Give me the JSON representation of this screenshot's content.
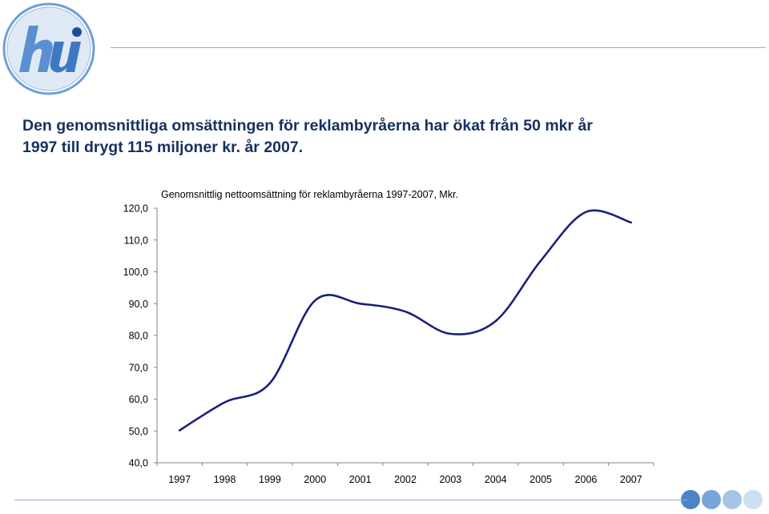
{
  "headline": {
    "line1": "Den genomsnittliga omsättningen för reklambyråerna har ökat från 50 mkr år",
    "line2": "1997 till drygt 115 miljoner kr. år 2007."
  },
  "logo": {
    "icon": "hui-logo-icon",
    "primary_color": "#5a8fd0",
    "accent_color": "#1f4e9a"
  },
  "colors": {
    "headline": "#17305f",
    "series_line": "#1a1f7a",
    "rules": "#8fb0d2"
  },
  "chart_data": {
    "type": "line",
    "title": "Genomsnittlig nettoomsättning för reklambyråerna 1997-2007, Mkr.",
    "xlabel": "",
    "ylabel": "",
    "categories": [
      "1997",
      "1998",
      "1999",
      "2000",
      "2001",
      "2002",
      "2003",
      "2004",
      "2005",
      "2006",
      "2007"
    ],
    "series": [
      {
        "values": [
          50.2,
          59.0,
          65.0,
          91.0,
          90.0,
          87.5,
          80.5,
          84.5,
          103.5,
          118.8,
          115.5
        ]
      }
    ],
    "ylim": [
      40,
      120
    ],
    "yticks": [
      40,
      50,
      60,
      70,
      80,
      90,
      100,
      110,
      120
    ],
    "ytick_labels": [
      "40,0",
      "50,0",
      "60,0",
      "70,0",
      "80,0",
      "90,0",
      "100,0",
      "110,0",
      "120,0"
    ],
    "grid": false,
    "legend": "none"
  }
}
